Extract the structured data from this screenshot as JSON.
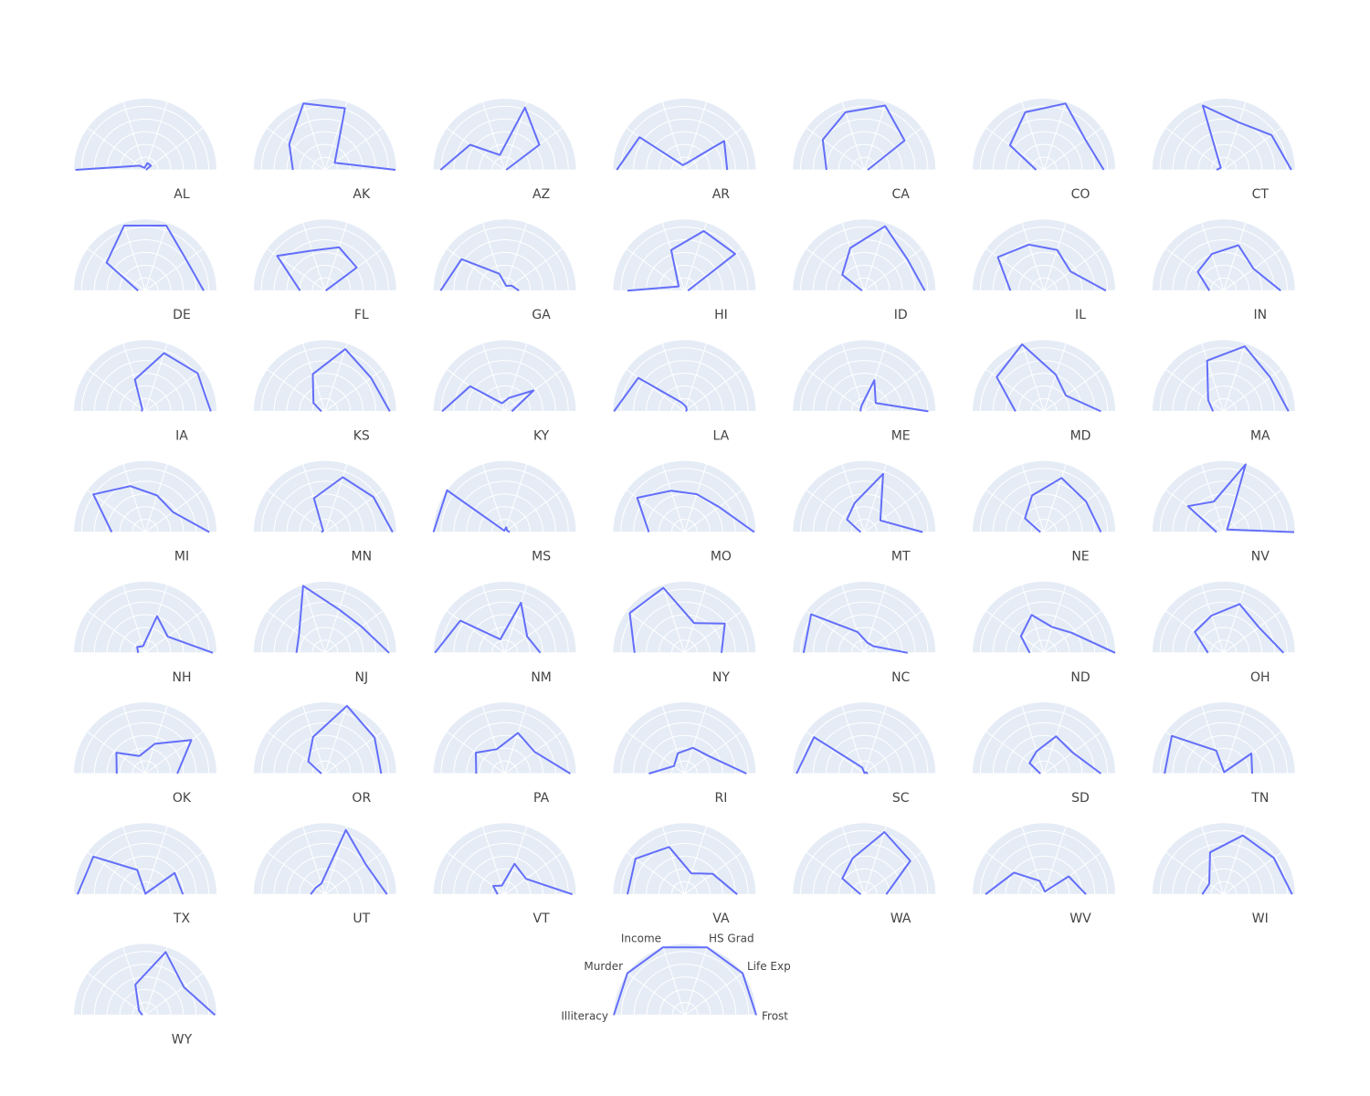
{
  "chart_data": {
    "type": "radar",
    "subtype": "half-polar small multiples",
    "axes": [
      "Illiteracy",
      "Murder",
      "Income",
      "HS Grad",
      "Life Exp",
      "Frost"
    ],
    "radial_range": [
      0,
      1
    ],
    "grid": true,
    "colors": {
      "background": "#e5ecf6",
      "grid": "#ffffff",
      "line": "#636efa",
      "text": "#444444"
    },
    "legend_panel": {
      "values": [
        1,
        1,
        1,
        1,
        1,
        1
      ],
      "show_axis_labels": true
    },
    "states": [
      {
        "name": "AL",
        "values": [
          0.98,
          0.1,
          0.03,
          0.1,
          0.1,
          0.01
        ]
      },
      {
        "name": "AK",
        "values": [
          0.45,
          0.62,
          0.98,
          0.91,
          0.17,
          0.99
        ]
      },
      {
        "name": "AZ",
        "values": [
          0.9,
          0.6,
          0.22,
          0.92,
          0.6,
          0.02
        ]
      },
      {
        "name": "AR",
        "values": [
          0.95,
          0.78,
          0.07,
          0.1,
          0.69,
          0.6
        ]
      },
      {
        "name": "CA",
        "values": [
          0.53,
          0.72,
          0.85,
          0.95,
          0.7,
          0.05
        ]
      },
      {
        "name": "CO",
        "values": [
          0.11,
          0.59,
          0.85,
          0.98,
          0.72,
          0.84
        ]
      },
      {
        "name": "CT",
        "values": [
          0.1,
          0.05,
          0.95,
          0.7,
          0.83,
          0.95
        ]
      },
      {
        "name": "DE",
        "values": [
          0.1,
          0.67,
          0.96,
          0.96,
          0.72,
          0.82
        ]
      },
      {
        "name": "FL",
        "values": [
          0.35,
          0.83,
          0.59,
          0.64,
          0.55,
          0.01
        ]
      },
      {
        "name": "GA",
        "values": [
          0.9,
          0.75,
          0.25,
          0.07,
          0.12,
          0.2
        ]
      },
      {
        "name": "HI",
        "values": [
          0.8,
          0.1,
          0.6,
          0.88,
          0.88,
          0.05
        ]
      },
      {
        "name": "ID",
        "values": [
          0.03,
          0.38,
          0.63,
          0.95,
          0.75,
          0.85
        ]
      },
      {
        "name": "IL",
        "values": [
          0.47,
          0.8,
          0.68,
          0.6,
          0.46,
          0.87
        ]
      },
      {
        "name": "IN",
        "values": [
          0.2,
          0.45,
          0.54,
          0.67,
          0.52,
          0.8
        ]
      },
      {
        "name": "IA",
        "values": [
          0.05,
          0.05,
          0.47,
          0.86,
          0.91,
          0.92
        ]
      },
      {
        "name": "KS",
        "values": [
          0.05,
          0.2,
          0.55,
          0.92,
          0.8,
          0.91
        ]
      },
      {
        "name": "KY",
        "values": [
          0.88,
          0.6,
          0.12,
          0.2,
          0.5,
          0.1
        ]
      },
      {
        "name": "LA",
        "values": [
          0.99,
          0.8,
          0.13,
          0.07,
          0.04,
          0.02
        ]
      },
      {
        "name": "ME",
        "values": [
          0.05,
          0.06,
          0.1,
          0.46,
          0.2,
          0.9
        ]
      },
      {
        "name": "MD",
        "values": [
          0.4,
          0.82,
          0.99,
          0.54,
          0.38,
          0.8
        ]
      },
      {
        "name": "MA",
        "values": [
          0.15,
          0.27,
          0.75,
          0.96,
          0.81,
          0.91
        ]
      },
      {
        "name": "MI",
        "values": [
          0.47,
          0.9,
          0.68,
          0.54,
          0.48,
          0.9
        ]
      },
      {
        "name": "MN",
        "values": [
          0.05,
          0.03,
          0.5,
          0.81,
          0.84,
          0.95
        ]
      },
      {
        "name": "MS",
        "values": [
          1.0,
          1.0,
          0.02,
          0.07,
          0.04,
          0.07
        ]
      },
      {
        "name": "MO",
        "values": [
          0.5,
          0.82,
          0.61,
          0.56,
          0.6,
          0.98
        ]
      },
      {
        "name": "MT",
        "values": [
          0.05,
          0.3,
          0.43,
          0.86,
          0.28,
          0.82
        ]
      },
      {
        "name": "NE",
        "values": [
          0.05,
          0.33,
          0.54,
          0.8,
          0.73,
          0.8
        ]
      },
      {
        "name": "NV",
        "values": [
          0.1,
          0.62,
          0.45,
          1.0,
          0.06,
          0.99
        ]
      },
      {
        "name": "NH",
        "values": [
          0.1,
          0.14,
          0.1,
          0.54,
          0.39,
          0.95
        ]
      },
      {
        "name": "NJ",
        "values": [
          0.4,
          0.45,
          0.99,
          0.64,
          0.63,
          0.9
        ]
      },
      {
        "name": "NM",
        "values": [
          0.98,
          0.77,
          0.2,
          0.74,
          0.39,
          0.5
        ]
      },
      {
        "name": "NY",
        "values": [
          0.7,
          0.95,
          0.96,
          0.44,
          0.7,
          0.52
        ]
      },
      {
        "name": "NC",
        "values": [
          0.85,
          0.92,
          0.31,
          0.15,
          0.16,
          0.61
        ]
      },
      {
        "name": "ND",
        "values": [
          0.2,
          0.4,
          0.56,
          0.38,
          0.48,
          1.0
        ]
      },
      {
        "name": "OH",
        "values": [
          0.22,
          0.5,
          0.55,
          0.72,
          0.61,
          0.84
        ]
      },
      {
        "name": "OK",
        "values": [
          0.4,
          0.5,
          0.26,
          0.44,
          0.8,
          0.45
        ]
      },
      {
        "name": "OR",
        "values": [
          0.05,
          0.29,
          0.54,
          1.0,
          0.86,
          0.79
        ]
      },
      {
        "name": "PA",
        "values": [
          0.4,
          0.5,
          0.36,
          0.6,
          0.52,
          0.92
        ]
      },
      {
        "name": "RI",
        "values": [
          0.5,
          0.18,
          0.3,
          0.38,
          0.42,
          0.87
        ]
      },
      {
        "name": "SC",
        "values": [
          0.95,
          0.87,
          0.09,
          0.01,
          0.03,
          0.05
        ]
      },
      {
        "name": "SD",
        "values": [
          0.05,
          0.25,
          0.33,
          0.55,
          0.5,
          0.8
        ]
      },
      {
        "name": "TN",
        "values": [
          0.83,
          0.9,
          0.34,
          0.02,
          0.48,
          0.4
        ]
      },
      {
        "name": "TX",
        "values": [
          0.95,
          0.9,
          0.36,
          0.01,
          0.51,
          0.53
        ]
      },
      {
        "name": "UT",
        "values": [
          0.2,
          0.16,
          0.16,
          0.95,
          0.71,
          0.87
        ]
      },
      {
        "name": "VT",
        "values": [
          0.1,
          0.2,
          0.13,
          0.45,
          0.37,
          0.95
        ]
      },
      {
        "name": "VA",
        "values": [
          0.8,
          0.85,
          0.7,
          0.31,
          0.49,
          0.74
        ]
      },
      {
        "name": "WA",
        "values": [
          0.05,
          0.38,
          0.53,
          0.92,
          0.8,
          0.31
        ]
      },
      {
        "name": "WV",
        "values": [
          0.82,
          0.52,
          0.2,
          0.04,
          0.43,
          0.59
        ]
      },
      {
        "name": "WI",
        "values": [
          0.3,
          0.25,
          0.62,
          0.87,
          0.87,
          0.96
        ]
      },
      {
        "name": "WY",
        "values": [
          0.04,
          0.11,
          0.45,
          0.93,
          0.67,
          0.98
        ]
      }
    ]
  }
}
